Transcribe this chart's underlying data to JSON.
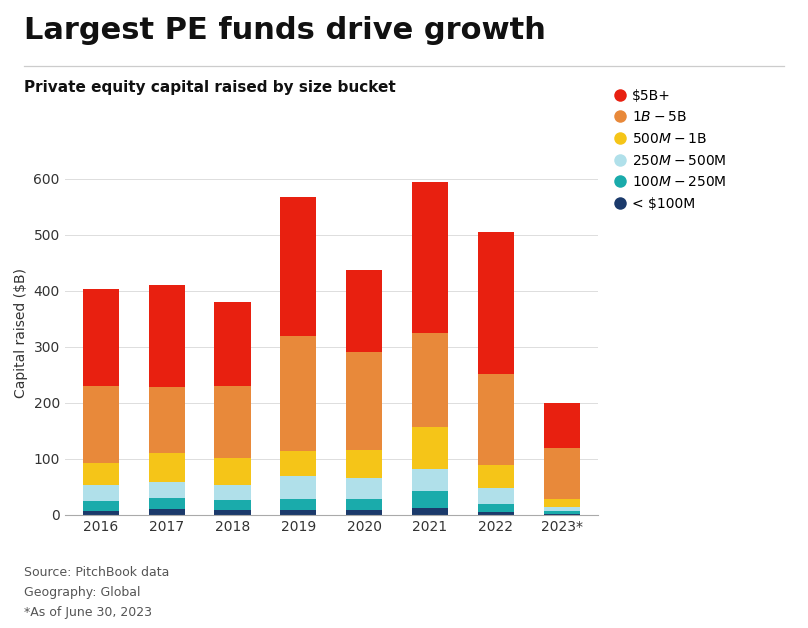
{
  "title": "Largest PE funds drive growth",
  "subtitle": "Private equity capital raised by size bucket",
  "ylabel": "Capital raised ($B)",
  "years": [
    "2016",
    "2017",
    "2018",
    "2019",
    "2020",
    "2021",
    "2022",
    "2023*"
  ],
  "categories": [
    "< $100M",
    "$100M-$250M",
    "$250M-$500M",
    "$500M-$1B",
    "$1B-$5B",
    "$5B+"
  ],
  "colors": [
    "#1b3a6b",
    "#1aabab",
    "#b0e0ea",
    "#f5c518",
    "#e8893a",
    "#e82010"
  ],
  "data": {
    "< $100M": [
      7,
      10,
      8,
      8,
      8,
      12,
      6,
      2
    ],
    "$100M-$250M": [
      18,
      20,
      18,
      20,
      20,
      30,
      14,
      5
    ],
    "$250M-$500M": [
      28,
      28,
      28,
      42,
      38,
      40,
      28,
      7
    ],
    "$500M-$1B": [
      40,
      52,
      48,
      45,
      50,
      75,
      42,
      15
    ],
    "$1B-$5B": [
      138,
      118,
      128,
      205,
      175,
      168,
      162,
      90
    ],
    "$5B+": [
      173,
      182,
      150,
      248,
      147,
      270,
      253,
      80
    ]
  },
  "footnote": "Source: PitchBook data\nGeography: Global\n*As of June 30, 2023",
  "background_color": "#ffffff",
  "title_fontsize": 22,
  "subtitle_fontsize": 11,
  "ylabel_fontsize": 10,
  "tick_fontsize": 10,
  "legend_fontsize": 10,
  "ylim": [
    0,
    650
  ],
  "yticks": [
    0,
    100,
    200,
    300,
    400,
    500,
    600
  ]
}
